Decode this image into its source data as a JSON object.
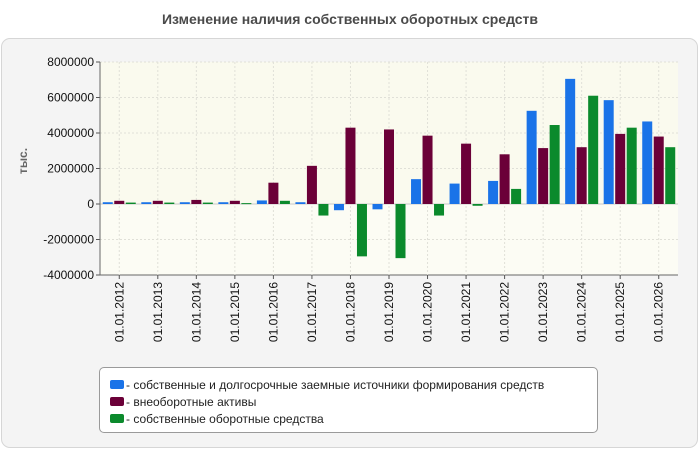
{
  "header": {
    "title": "Изменение наличия собственных оборотных средств"
  },
  "chart_data": {
    "type": "bar",
    "ylabel": "тыс.",
    "ylim": [
      -4000000,
      8000000
    ],
    "yticks": [
      8000000,
      6000000,
      4000000,
      2000000,
      0,
      -2000000,
      -4000000
    ],
    "grid": true,
    "legend_position": "bottom",
    "categories": [
      "01.01.2012",
      "01.01.2013",
      "01.01.2014",
      "01.01.2015",
      "01.01.2016",
      "01.01.2017",
      "01.01.2018",
      "01.01.2019",
      "01.01.2020",
      "01.01.2021",
      "01.01.2022",
      "01.01.2023",
      "01.01.2024",
      "01.01.2025",
      "01.01.2026"
    ],
    "series": [
      {
        "name": "- собственные и долгосрочные заемные источники формирования средств",
        "color": "#1a73e8",
        "values": [
          100000,
          100000,
          100000,
          100000,
          200000,
          100000,
          -350000,
          -300000,
          1400000,
          1150000,
          1300000,
          5250000,
          7050000,
          5850000,
          4650000
        ]
      },
      {
        "name": "- внеоборотные активы",
        "color": "#6b0038",
        "values": [
          180000,
          180000,
          230000,
          180000,
          1200000,
          2150000,
          4300000,
          4200000,
          3850000,
          3400000,
          2800000,
          3150000,
          3200000,
          3950000,
          3800000
        ]
      },
      {
        "name": "- собственные оборотные средства",
        "color": "#0b8a2c",
        "values": [
          80000,
          80000,
          80000,
          50000,
          180000,
          -650000,
          -2950000,
          -3050000,
          -650000,
          -100000,
          850000,
          4450000,
          6100000,
          4300000,
          3200000
        ]
      }
    ]
  }
}
